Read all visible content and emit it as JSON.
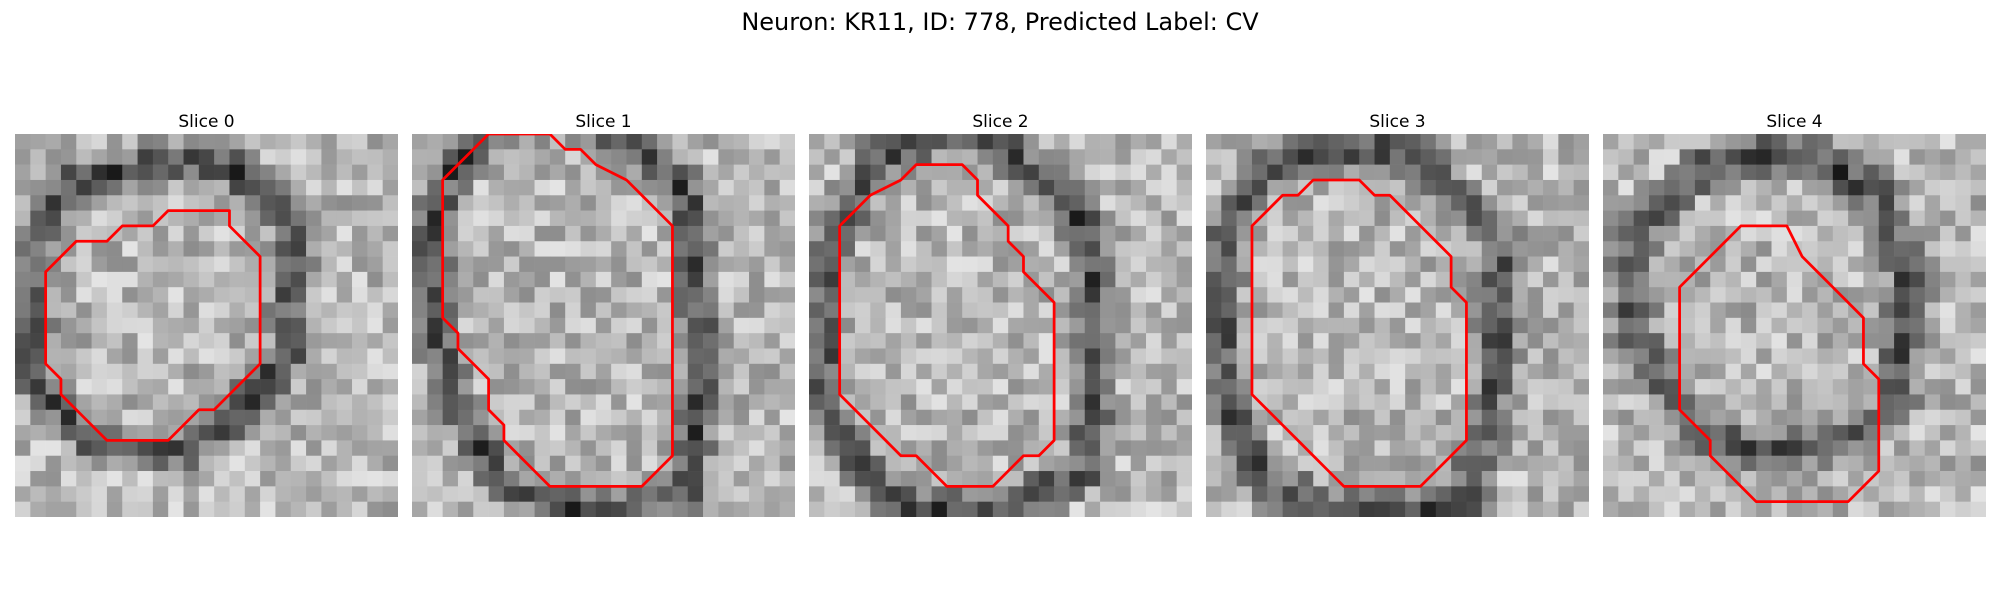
{
  "figure": {
    "title": "Neuron: KR11, ID: 778, Predicted Label: CV"
  },
  "panels": [
    {
      "title": "Slice 0",
      "contour": [
        [
          14,
          5
        ],
        [
          10,
          5
        ],
        [
          9,
          6
        ],
        [
          7,
          6
        ],
        [
          6,
          7
        ],
        [
          4,
          7
        ],
        [
          2,
          9
        ],
        [
          2,
          12
        ],
        [
          2,
          15
        ],
        [
          3,
          16
        ],
        [
          3,
          17
        ],
        [
          5,
          19
        ],
        [
          6,
          20
        ],
        [
          7,
          20
        ],
        [
          10,
          20
        ],
        [
          11,
          19
        ],
        [
          12,
          18
        ],
        [
          13,
          18
        ],
        [
          14,
          17
        ],
        [
          15,
          16
        ],
        [
          16,
          15
        ],
        [
          16,
          12
        ],
        [
          16,
          10
        ],
        [
          16,
          8
        ],
        [
          14,
          6
        ]
      ],
      "dark_ring": [
        [
          14,
          2
        ],
        [
          18,
          6
        ],
        [
          18,
          14
        ],
        [
          15,
          18
        ],
        [
          10,
          21
        ],
        [
          5,
          20
        ],
        [
          1,
          16
        ],
        [
          1,
          7
        ],
        [
          4,
          3
        ],
        [
          9,
          2
        ]
      ],
      "seed": 11
    },
    {
      "title": "Slice 1",
      "contour": [
        [
          9,
          0
        ],
        [
          5,
          0
        ],
        [
          4,
          1
        ],
        [
          3,
          2
        ],
        [
          2,
          3
        ],
        [
          2,
          5
        ],
        [
          2,
          8
        ],
        [
          2,
          10
        ],
        [
          2,
          12
        ],
        [
          3,
          13
        ],
        [
          3,
          14
        ],
        [
          4,
          15
        ],
        [
          5,
          16
        ],
        [
          5,
          18
        ],
        [
          6,
          19
        ],
        [
          6,
          20
        ],
        [
          7,
          21
        ],
        [
          8,
          22
        ],
        [
          9,
          23
        ],
        [
          12,
          23
        ],
        [
          15,
          23
        ],
        [
          16,
          22
        ],
        [
          17,
          21
        ],
        [
          17,
          18
        ],
        [
          17,
          14
        ],
        [
          17,
          10
        ],
        [
          17,
          6
        ],
        [
          15,
          4
        ],
        [
          14,
          3
        ],
        [
          12,
          2
        ],
        [
          11,
          1
        ],
        [
          10,
          1
        ]
      ],
      "dark_ring": [
        [
          12,
          -1
        ],
        [
          18,
          4
        ],
        [
          19,
          14
        ],
        [
          18,
          23
        ],
        [
          12,
          25
        ],
        [
          6,
          23
        ],
        [
          3,
          18
        ],
        [
          1,
          10
        ],
        [
          2,
          3
        ],
        [
          6,
          -1
        ]
      ],
      "seed": 23
    },
    {
      "title": "Slice 2",
      "contour": [
        [
          10,
          2
        ],
        [
          7,
          2
        ],
        [
          6,
          3
        ],
        [
          4,
          4
        ],
        [
          3,
          5
        ],
        [
          2,
          6
        ],
        [
          2,
          9
        ],
        [
          2,
          12
        ],
        [
          2,
          15
        ],
        [
          2,
          17
        ],
        [
          3,
          18
        ],
        [
          4,
          19
        ],
        [
          5,
          20
        ],
        [
          6,
          21
        ],
        [
          7,
          21
        ],
        [
          8,
          22
        ],
        [
          9,
          23
        ],
        [
          12,
          23
        ],
        [
          13,
          22
        ],
        [
          14,
          21
        ],
        [
          15,
          21
        ],
        [
          16,
          20
        ],
        [
          16,
          17
        ],
        [
          16,
          14
        ],
        [
          16,
          11
        ],
        [
          15,
          10
        ],
        [
          14,
          9
        ],
        [
          14,
          8
        ],
        [
          13,
          7
        ],
        [
          13,
          6
        ],
        [
          12,
          5
        ],
        [
          11,
          4
        ],
        [
          11,
          3
        ]
      ],
      "dark_ring": [
        [
          12,
          0
        ],
        [
          18,
          6
        ],
        [
          19,
          14
        ],
        [
          18,
          22
        ],
        [
          12,
          25
        ],
        [
          5,
          24
        ],
        [
          1,
          18
        ],
        [
          1,
          8
        ],
        [
          4,
          2
        ],
        [
          8,
          0
        ]
      ],
      "seed": 37
    },
    {
      "title": "Slice 3",
      "contour": [
        [
          10,
          3
        ],
        [
          7,
          3
        ],
        [
          6,
          4
        ],
        [
          5,
          4
        ],
        [
          4,
          5
        ],
        [
          3,
          6
        ],
        [
          3,
          9
        ],
        [
          3,
          12
        ],
        [
          3,
          15
        ],
        [
          3,
          17
        ],
        [
          4,
          18
        ],
        [
          5,
          19
        ],
        [
          6,
          20
        ],
        [
          7,
          21
        ],
        [
          8,
          22
        ],
        [
          9,
          23
        ],
        [
          11,
          23
        ],
        [
          14,
          23
        ],
        [
          15,
          22
        ],
        [
          16,
          21
        ],
        [
          17,
          20
        ],
        [
          17,
          17
        ],
        [
          17,
          14
        ],
        [
          17,
          11
        ],
        [
          16,
          10
        ],
        [
          16,
          8
        ],
        [
          15,
          7
        ],
        [
          14,
          6
        ],
        [
          13,
          5
        ],
        [
          12,
          4
        ],
        [
          11,
          4
        ]
      ],
      "dark_ring": [
        [
          13,
          1
        ],
        [
          19,
          7
        ],
        [
          19,
          16
        ],
        [
          17,
          24
        ],
        [
          10,
          25
        ],
        [
          4,
          23
        ],
        [
          1,
          17
        ],
        [
          1,
          7
        ],
        [
          4,
          2
        ],
        [
          9,
          1
        ]
      ],
      "seed": 53
    },
    {
      "title": "Slice 4",
      "contour": [
        [
          12,
          6
        ],
        [
          9,
          6
        ],
        [
          8,
          7
        ],
        [
          7,
          8
        ],
        [
          6,
          9
        ],
        [
          5,
          10
        ],
        [
          5,
          13
        ],
        [
          5,
          16
        ],
        [
          5,
          18
        ],
        [
          6,
          19
        ],
        [
          7,
          20
        ],
        [
          7,
          21
        ],
        [
          8,
          22
        ],
        [
          9,
          23
        ],
        [
          10,
          24
        ],
        [
          14,
          24
        ],
        [
          16,
          24
        ],
        [
          17,
          23
        ],
        [
          18,
          22
        ],
        [
          18,
          19
        ],
        [
          18,
          16
        ],
        [
          17,
          15
        ],
        [
          17,
          12
        ],
        [
          16,
          11
        ],
        [
          15,
          10
        ],
        [
          14,
          9
        ],
        [
          13,
          8
        ]
      ],
      "dark_ring": [
        [
          13,
          1
        ],
        [
          18,
          4
        ],
        [
          20,
          10
        ],
        [
          19,
          18
        ],
        [
          16,
          20
        ],
        [
          10,
          21
        ],
        [
          6,
          19
        ],
        [
          2,
          13
        ],
        [
          2,
          6
        ],
        [
          7,
          2
        ]
      ],
      "seed": 71
    }
  ]
}
